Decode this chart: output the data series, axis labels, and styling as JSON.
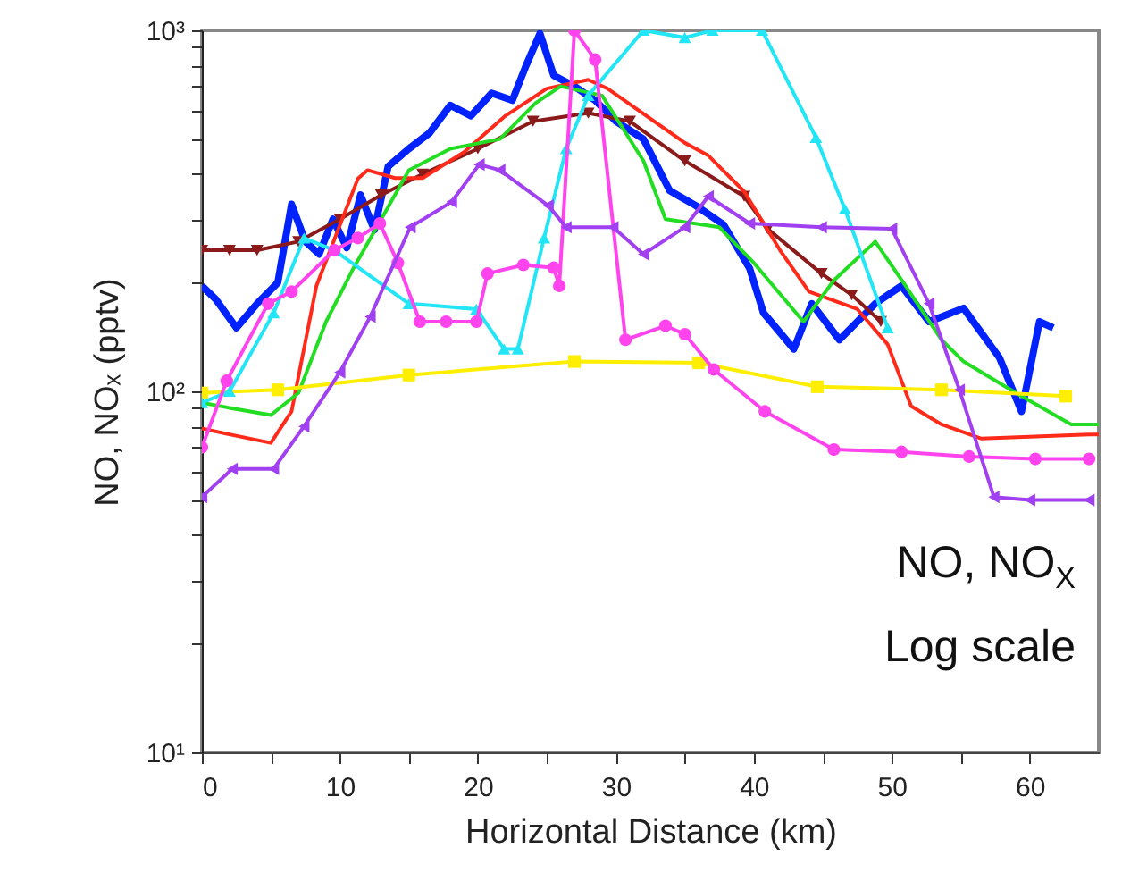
{
  "chart_data": {
    "type": "line",
    "xlabel": "Horizontal Distance (km)",
    "ylabel": "NO, NOₓ (pptv)",
    "log": "y",
    "grid": false,
    "xlim": [
      0,
      65
    ],
    "xticks": [
      0,
      {
        "value": 5,
        "label": null
      },
      10,
      {
        "value": 15,
        "label": null
      },
      20,
      {
        "value": 25,
        "label": null
      },
      30,
      {
        "value": 35,
        "label": null
      },
      40,
      {
        "value": 45,
        "label": null
      },
      50,
      {
        "value": 55,
        "label": null
      },
      60
    ],
    "ylim": [
      10,
      1000
    ],
    "yticks": [
      {
        "value": 10,
        "label": "10¹"
      },
      {
        "value": 20,
        "label": null
      },
      {
        "value": 30,
        "label": null
      },
      {
        "value": 40,
        "label": null
      },
      {
        "value": 50,
        "label": null
      },
      {
        "value": 60,
        "label": null
      },
      {
        "value": 70,
        "label": null
      },
      {
        "value": 80,
        "label": null
      },
      {
        "value": 90,
        "label": null
      },
      {
        "value": 100,
        "label": "10²"
      },
      {
        "value": 200,
        "label": null
      },
      {
        "value": 300,
        "label": null
      },
      {
        "value": 400,
        "label": null
      },
      {
        "value": 500,
        "label": null
      },
      {
        "value": 600,
        "label": null
      },
      {
        "value": 700,
        "label": null
      },
      {
        "value": 800,
        "label": null
      },
      {
        "value": 900,
        "label": null
      },
      {
        "value": 1000,
        "label": "10³"
      }
    ],
    "annotations": [
      "NO, NO$_{X}$",
      "Log scale"
    ],
    "series": [
      {
        "color": "#0022ff",
        "marker": "none",
        "x": [
          0,
          1,
          2.5,
          4,
          5.5,
          6.5,
          7.5,
          8.5,
          9.5,
          10.5,
          11.5,
          12.5,
          13.5,
          15,
          16.5,
          18,
          19.5,
          21,
          22.5,
          23.5,
          24.5,
          25.5,
          27,
          28.5,
          30,
          32,
          33.9,
          35.8,
          37.8,
          39.7,
          40.7,
          42.9,
          44.2,
          46.2,
          48.8,
          50.7,
          52.7,
          55.2,
          57.8,
          59.4,
          60.7,
          61.7
        ],
        "values": [
          196,
          180,
          150,
          175,
          200,
          330,
          260,
          240,
          300,
          250,
          350,
          280,
          420,
          470,
          520,
          620,
          580,
          670,
          640,
          800,
          980,
          750,
          700,
          640,
          560,
          500,
          360,
          327,
          290,
          219,
          165,
          131,
          175,
          139,
          175,
          196,
          156,
          170,
          124,
          88,
          156,
          150
        ]
      },
      {
        "color": "#8b1a1a",
        "marker": "triangle-down",
        "x": [
          0,
          2,
          4,
          7,
          10,
          13,
          16,
          20,
          24,
          28,
          31,
          35,
          39.3,
          41,
          44.9,
          47.1,
          49.2
        ],
        "values": [
          246,
          246,
          246,
          260,
          300,
          350,
          400,
          470,
          560,
          590,
          560,
          435,
          347,
          282,
          212,
          185,
          156
        ]
      },
      {
        "color": "#ff2a1a",
        "marker": "none",
        "x": [
          0,
          2,
          5,
          6.5,
          8.3,
          11.3,
          12,
          14,
          16,
          19,
          22,
          25,
          28,
          29.4,
          35,
          36.7,
          39.3,
          41.9,
          44,
          47.5,
          49.7,
          51.4,
          53.6,
          56.5,
          64.3,
          65
        ],
        "values": [
          79,
          76,
          72,
          88,
          196,
          388,
          410,
          390,
          390,
          460,
          580,
          690,
          730,
          690,
          488,
          450,
          358,
          246,
          189,
          169,
          135,
          91,
          81,
          74,
          76,
          76
        ]
      },
      {
        "color": "#22dd22",
        "marker": "none",
        "x": [
          0,
          2,
          5,
          7,
          9,
          11,
          13,
          15,
          18,
          21.6,
          24.2,
          26,
          29,
          32,
          33.6,
          37.5,
          40,
          43.6,
          45.8,
          48.8,
          51,
          53.6,
          55.2,
          59,
          63,
          65
        ],
        "values": [
          93,
          90,
          86,
          99,
          156,
          220,
          300,
          410,
          470,
          500,
          630,
          700,
          660,
          435,
          300,
          285,
          227,
          156,
          203,
          260,
          196,
          139,
          121,
          99,
          81,
          81
        ]
      },
      {
        "color": "#ffee00",
        "marker": "square",
        "x": [
          0,
          5.5,
          15,
          27,
          36,
          44.6,
          53.6,
          62.6
        ],
        "values": [
          99,
          101,
          111,
          121,
          120,
          103,
          101,
          97
        ]
      },
      {
        "color": "#22e5f5",
        "marker": "triangle-up",
        "x": [
          0,
          2,
          5.2,
          7.4,
          9.6,
          15,
          19.9,
          21.9,
          22.9,
          24.8,
          26.4,
          28,
          32,
          35,
          37,
          40.6,
          44.5,
          46.6,
          49.7
        ],
        "values": [
          93,
          100,
          165,
          266,
          246,
          175,
          169,
          131,
          131,
          266,
          470,
          660,
          1000,
          955,
          1000,
          1000,
          505,
          320,
          150
        ]
      },
      {
        "color": "#ff44ee",
        "marker": "circle",
        "x": [
          0,
          1.8,
          4.8,
          6.5,
          9.6,
          11.3,
          12.9,
          14.2,
          15.8,
          17.7,
          19.9,
          20.7,
          23.3,
          25.5,
          25.9,
          27,
          28.5,
          30.7,
          33.6,
          35,
          37.1,
          40.8,
          45.8,
          50.7,
          55.6,
          60.4,
          64.3
        ],
        "values": [
          70,
          107,
          175,
          189,
          246,
          266,
          292,
          227,
          156,
          156,
          156,
          212,
          224,
          220,
          196,
          1000,
          830,
          139,
          152,
          144,
          115,
          88,
          69,
          68,
          66,
          65,
          65
        ]
      },
      {
        "color": "#a040f0",
        "marker": "triangle-left",
        "x": [
          0,
          2.2,
          5.2,
          7.4,
          10,
          12.2,
          15.1,
          18.1,
          20.1,
          21.6,
          25.1,
          26.4,
          29.8,
          32,
          35,
          36.7,
          39.7,
          44.9,
          50,
          52.7,
          54.9,
          57.4,
          60,
          64.3
        ],
        "values": [
          51,
          61,
          61,
          80,
          113,
          161,
          285,
          335,
          425,
          410,
          327,
          285,
          285,
          240,
          285,
          347,
          292,
          285,
          282,
          175,
          101,
          51,
          50,
          50
        ]
      }
    ]
  }
}
